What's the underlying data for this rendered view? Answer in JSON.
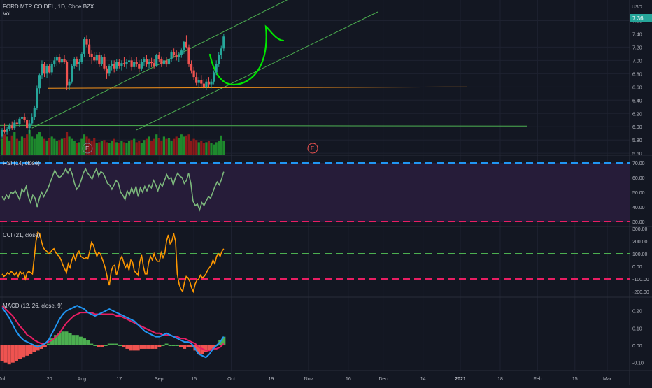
{
  "colors": {
    "bg": "#131722",
    "grid": "#1e2230",
    "axisText": "#b2b5be",
    "up": "#26a69a",
    "down": "#ef5350",
    "volUp": "#1e8a2d",
    "volDown": "#8b1a1a",
    "channel": "#4caf50",
    "support": "#f7931a",
    "rsi": "#7cb87c",
    "rsiBand": "#2a1e3c",
    "level70": "#2196f3",
    "level30": "#e91e63",
    "cci": "#ff9800",
    "cciUp": "#4caf50",
    "macd": "#2196f3",
    "signal": "#e91e63",
    "drawn": "#00e600",
    "priceTag": "#26a69a"
  },
  "header": {
    "symbol": "FORD MTR CO DEL, 1D, Cboe BZX",
    "volume_label": "Vol",
    "currency": "USD",
    "last_price": "7.36"
  },
  "x_axis": {
    "labels": [
      "Jul",
      "20",
      "Aug",
      "17",
      "Sep",
      "15",
      "Oct",
      "19",
      "Nov",
      "16",
      "Dec",
      "14",
      "2021",
      "18",
      "Feb",
      "15",
      "Mar"
    ],
    "label_days": [
      0,
      19,
      32,
      47,
      63,
      77,
      92,
      108,
      123,
      139,
      153,
      169,
      184,
      200,
      215,
      230,
      243
    ]
  },
  "price_axis": {
    "ticks": [
      "5.60",
      "5.80",
      "6.00",
      "6.20",
      "6.40",
      "6.60",
      "6.80",
      "7.00",
      "7.20",
      "7.40",
      "7.60"
    ]
  },
  "events": {
    "earnings_1": "E",
    "earnings_2": "E"
  },
  "rsi": {
    "label": "RSI (14, close)",
    "ticks": [
      "70.00",
      "60.00",
      "50.00",
      "40.00",
      "30.00"
    ],
    "values": [
      47,
      45,
      48,
      46,
      50,
      49,
      51,
      48,
      45,
      52,
      50,
      54,
      47,
      43,
      48,
      46,
      40,
      46,
      50,
      47,
      50,
      53,
      57,
      61,
      65,
      62,
      60,
      61,
      63,
      66,
      63,
      66,
      62,
      56,
      52,
      54,
      58,
      63,
      66,
      63,
      61,
      59,
      63,
      66,
      61,
      64,
      63,
      60,
      56,
      55,
      52,
      55,
      58,
      56,
      50,
      48,
      45,
      51,
      48,
      53,
      49,
      54,
      47,
      53,
      50,
      54,
      51,
      55,
      53,
      58,
      55,
      51,
      56,
      54,
      58,
      62,
      59,
      60,
      55,
      60,
      63,
      61,
      60,
      56,
      58,
      63,
      56,
      44,
      41,
      42,
      38,
      43,
      41,
      44,
      47,
      46,
      50,
      54,
      57,
      55,
      59,
      64
    ]
  },
  "cci": {
    "label": "CCI (21, close)",
    "ticks": [
      "300.00",
      "200.00",
      "100.00",
      "0.00",
      "-100.00",
      "-200.00"
    ],
    "values": [
      -60,
      -80,
      -70,
      -50,
      -60,
      -40,
      -50,
      -70,
      -50,
      -80,
      -40,
      -60,
      -50,
      -100,
      -50,
      -40,
      -50,
      -60,
      70,
      200,
      270,
      260,
      200,
      150,
      130,
      120,
      100,
      110,
      130,
      140,
      110,
      90,
      80,
      50,
      10,
      -20,
      -50,
      20,
      -10,
      50,
      90,
      50,
      100,
      120,
      80,
      70,
      60,
      70,
      60,
      120,
      190,
      170,
      120,
      80,
      110,
      100,
      60,
      20,
      -30,
      -100,
      -150,
      -40,
      0,
      10,
      -70,
      -20,
      50,
      80,
      30,
      -10,
      20,
      -30,
      50,
      30,
      -40,
      -50,
      -70,
      30,
      90,
      0,
      -60,
      -60,
      30,
      80,
      50,
      100,
      60,
      40,
      40,
      110,
      70,
      100,
      200,
      250,
      180,
      200,
      260,
      200,
      -60,
      -140,
      -180,
      -200,
      -130,
      -80,
      -90,
      -120,
      -170,
      -200,
      -140,
      -110,
      -100,
      -70,
      -90,
      -80,
      -60,
      -30,
      -10,
      10,
      50,
      20,
      80,
      100,
      80,
      120,
      140
    ]
  },
  "macd": {
    "label": "MACD (12, 26, close, 9)",
    "ticks": [
      "0.20",
      "0.10",
      "0.00",
      "-0.10"
    ]
  },
  "chart_data": {
    "type": "candlestick",
    "title": "FORD MTR CO DEL, 1D, Cboe BZX",
    "y_range": [
      5.57,
      7.7
    ],
    "x_range_days": [
      0,
      248
    ],
    "candles": [
      {
        "d": 0,
        "o": 5.85,
        "h": 5.98,
        "l": 5.82,
        "c": 5.95
      },
      {
        "d": 1,
        "o": 5.95,
        "h": 6.05,
        "l": 5.9,
        "c": 5.92
      },
      {
        "d": 2,
        "o": 5.92,
        "h": 6.0,
        "l": 5.88,
        "c": 5.97
      },
      {
        "d": 3,
        "o": 5.97,
        "h": 6.05,
        "l": 5.93,
        "c": 6.02
      },
      {
        "d": 4,
        "o": 6.02,
        "h": 6.08,
        "l": 5.95,
        "c": 5.98
      },
      {
        "d": 5,
        "o": 5.98,
        "h": 6.1,
        "l": 5.95,
        "c": 6.06
      },
      {
        "d": 6,
        "o": 6.06,
        "h": 6.12,
        "l": 6.0,
        "c": 6.04
      },
      {
        "d": 7,
        "o": 6.04,
        "h": 6.14,
        "l": 6.0,
        "c": 6.12
      },
      {
        "d": 8,
        "o": 6.12,
        "h": 6.18,
        "l": 6.08,
        "c": 6.14
      },
      {
        "d": 9,
        "o": 6.14,
        "h": 6.2,
        "l": 6.06,
        "c": 6.1
      },
      {
        "d": 10,
        "o": 6.1,
        "h": 6.15,
        "l": 5.95,
        "c": 5.98
      },
      {
        "d": 11,
        "o": 5.98,
        "h": 6.1,
        "l": 5.9,
        "c": 6.05
      },
      {
        "d": 12,
        "o": 6.05,
        "h": 6.2,
        "l": 6.02,
        "c": 6.15
      },
      {
        "d": 13,
        "o": 6.15,
        "h": 6.32,
        "l": 6.1,
        "c": 6.28
      },
      {
        "d": 14,
        "o": 6.28,
        "h": 6.62,
        "l": 6.25,
        "c": 6.58
      },
      {
        "d": 15,
        "o": 6.58,
        "h": 6.8,
        "l": 6.5,
        "c": 6.78
      },
      {
        "d": 16,
        "o": 6.78,
        "h": 7.0,
        "l": 6.72,
        "c": 6.95
      },
      {
        "d": 17,
        "o": 6.95,
        "h": 6.98,
        "l": 6.75,
        "c": 6.8
      },
      {
        "d": 18,
        "o": 6.8,
        "h": 6.95,
        "l": 6.74,
        "c": 6.92
      },
      {
        "d": 19,
        "o": 6.92,
        "h": 6.95,
        "l": 6.8,
        "c": 6.82
      },
      {
        "d": 20,
        "o": 6.82,
        "h": 6.98,
        "l": 6.78,
        "c": 6.95
      },
      {
        "d": 21,
        "o": 6.95,
        "h": 7.05,
        "l": 6.9,
        "c": 7.0
      },
      {
        "d": 22,
        "o": 7.0,
        "h": 7.08,
        "l": 6.92,
        "c": 7.05
      },
      {
        "d": 23,
        "o": 7.05,
        "h": 7.1,
        "l": 6.95,
        "c": 6.97
      },
      {
        "d": 24,
        "o": 6.97,
        "h": 7.05,
        "l": 6.9,
        "c": 7.02
      },
      {
        "d": 25,
        "o": 7.02,
        "h": 7.08,
        "l": 6.95,
        "c": 6.98
      },
      {
        "d": 26,
        "o": 6.98,
        "h": 7.0,
        "l": 6.55,
        "c": 6.62
      },
      {
        "d": 27,
        "o": 6.62,
        "h": 6.72,
        "l": 6.55,
        "c": 6.68
      },
      {
        "d": 28,
        "o": 6.68,
        "h": 6.95,
        "l": 6.65,
        "c": 6.92
      },
      {
        "d": 29,
        "o": 6.92,
        "h": 7.05,
        "l": 6.88,
        "c": 7.02
      },
      {
        "d": 30,
        "o": 7.02,
        "h": 7.06,
        "l": 6.9,
        "c": 6.95
      },
      {
        "d": 31,
        "o": 6.95,
        "h": 7.02,
        "l": 6.85,
        "c": 6.98
      },
      {
        "d": 32,
        "o": 6.98,
        "h": 7.12,
        "l": 6.95,
        "c": 7.1
      },
      {
        "d": 33,
        "o": 7.1,
        "h": 7.35,
        "l": 7.05,
        "c": 7.32
      },
      {
        "d": 34,
        "o": 7.32,
        "h": 7.38,
        "l": 7.2,
        "c": 7.24
      },
      {
        "d": 35,
        "o": 7.24,
        "h": 7.32,
        "l": 7.05,
        "c": 7.1
      },
      {
        "d": 36,
        "o": 7.1,
        "h": 7.15,
        "l": 6.95,
        "c": 7.05
      },
      {
        "d": 37,
        "o": 7.05,
        "h": 7.12,
        "l": 6.98,
        "c": 7.0
      },
      {
        "d": 38,
        "o": 7.0,
        "h": 7.12,
        "l": 6.95,
        "c": 7.08
      },
      {
        "d": 39,
        "o": 7.08,
        "h": 7.12,
        "l": 6.9,
        "c": 6.95
      },
      {
        "d": 40,
        "o": 6.95,
        "h": 7.08,
        "l": 6.92,
        "c": 7.05
      },
      {
        "d": 41,
        "o": 7.05,
        "h": 7.1,
        "l": 6.85,
        "c": 6.88
      },
      {
        "d": 42,
        "o": 6.88,
        "h": 6.92,
        "l": 6.72,
        "c": 6.8
      },
      {
        "d": 43,
        "o": 6.8,
        "h": 6.95,
        "l": 6.76,
        "c": 6.92
      },
      {
        "d": 44,
        "o": 6.92,
        "h": 7.0,
        "l": 6.85,
        "c": 6.95
      },
      {
        "d": 45,
        "o": 6.95,
        "h": 7.0,
        "l": 6.82,
        "c": 6.88
      },
      {
        "d": 46,
        "o": 6.88,
        "h": 7.02,
        "l": 6.84,
        "c": 6.98
      },
      {
        "d": 47,
        "o": 6.98,
        "h": 7.02,
        "l": 6.88,
        "c": 6.92
      },
      {
        "d": 48,
        "o": 6.92,
        "h": 7.0,
        "l": 6.85,
        "c": 6.96
      },
      {
        "d": 49,
        "o": 6.96,
        "h": 7.05,
        "l": 6.9,
        "c": 6.95
      },
      {
        "d": 50,
        "o": 6.95,
        "h": 7.02,
        "l": 6.88,
        "c": 6.98
      },
      {
        "d": 51,
        "o": 6.98,
        "h": 7.08,
        "l": 6.92,
        "c": 7.0
      },
      {
        "d": 52,
        "o": 7.0,
        "h": 7.05,
        "l": 6.85,
        "c": 6.9
      },
      {
        "d": 53,
        "o": 6.9,
        "h": 7.02,
        "l": 6.86,
        "c": 6.98
      },
      {
        "d": 54,
        "o": 6.98,
        "h": 7.05,
        "l": 6.9,
        "c": 6.95
      },
      {
        "d": 55,
        "o": 6.95,
        "h": 7.0,
        "l": 6.82,
        "c": 6.88
      },
      {
        "d": 56,
        "o": 6.88,
        "h": 7.02,
        "l": 6.84,
        "c": 6.98
      },
      {
        "d": 57,
        "o": 6.98,
        "h": 7.05,
        "l": 6.92,
        "c": 7.02
      },
      {
        "d": 58,
        "o": 7.02,
        "h": 7.08,
        "l": 6.9,
        "c": 6.94
      },
      {
        "d": 59,
        "o": 6.94,
        "h": 7.02,
        "l": 6.88,
        "c": 6.98
      },
      {
        "d": 60,
        "o": 6.98,
        "h": 7.04,
        "l": 6.9,
        "c": 6.96
      },
      {
        "d": 61,
        "o": 6.96,
        "h": 7.02,
        "l": 6.88,
        "c": 6.92
      },
      {
        "d": 62,
        "o": 6.92,
        "h": 7.1,
        "l": 6.9,
        "c": 7.08
      },
      {
        "d": 63,
        "o": 7.08,
        "h": 7.12,
        "l": 6.98,
        "c": 7.02
      },
      {
        "d": 64,
        "o": 7.02,
        "h": 7.06,
        "l": 6.9,
        "c": 6.95
      },
      {
        "d": 65,
        "o": 6.95,
        "h": 7.05,
        "l": 6.92,
        "c": 7.0
      },
      {
        "d": 66,
        "o": 7.0,
        "h": 7.05,
        "l": 6.9,
        "c": 6.94
      },
      {
        "d": 67,
        "o": 6.94,
        "h": 7.05,
        "l": 6.9,
        "c": 7.02
      },
      {
        "d": 68,
        "o": 7.02,
        "h": 7.15,
        "l": 6.98,
        "c": 7.12
      },
      {
        "d": 69,
        "o": 7.12,
        "h": 7.18,
        "l": 7.04,
        "c": 7.08
      },
      {
        "d": 70,
        "o": 7.08,
        "h": 7.15,
        "l": 7.0,
        "c": 7.05
      },
      {
        "d": 71,
        "o": 7.05,
        "h": 7.12,
        "l": 6.98,
        "c": 7.08
      },
      {
        "d": 72,
        "o": 7.08,
        "h": 7.18,
        "l": 7.04,
        "c": 7.15
      },
      {
        "d": 73,
        "o": 7.15,
        "h": 7.3,
        "l": 7.1,
        "c": 7.28
      },
      {
        "d": 74,
        "o": 7.28,
        "h": 7.38,
        "l": 7.18,
        "c": 7.2
      },
      {
        "d": 75,
        "o": 7.2,
        "h": 7.24,
        "l": 6.9,
        "c": 6.95
      },
      {
        "d": 76,
        "o": 6.95,
        "h": 7.0,
        "l": 6.8,
        "c": 6.85
      },
      {
        "d": 77,
        "o": 6.85,
        "h": 6.9,
        "l": 6.7,
        "c": 6.75
      },
      {
        "d": 78,
        "o": 6.75,
        "h": 6.82,
        "l": 6.62,
        "c": 6.66
      },
      {
        "d": 79,
        "o": 6.66,
        "h": 6.75,
        "l": 6.58,
        "c": 6.7
      },
      {
        "d": 80,
        "o": 6.7,
        "h": 6.78,
        "l": 6.6,
        "c": 6.65
      },
      {
        "d": 81,
        "o": 6.65,
        "h": 6.72,
        "l": 6.56,
        "c": 6.6
      },
      {
        "d": 82,
        "o": 6.6,
        "h": 6.72,
        "l": 6.55,
        "c": 6.68
      },
      {
        "d": 83,
        "o": 6.68,
        "h": 6.75,
        "l": 6.6,
        "c": 6.64
      },
      {
        "d": 84,
        "o": 6.64,
        "h": 6.72,
        "l": 6.58,
        "c": 6.68
      },
      {
        "d": 85,
        "o": 6.68,
        "h": 6.85,
        "l": 6.64,
        "c": 6.82
      },
      {
        "d": 86,
        "o": 6.82,
        "h": 7.0,
        "l": 6.78,
        "c": 6.95
      },
      {
        "d": 87,
        "o": 6.95,
        "h": 7.12,
        "l": 6.9,
        "c": 7.08
      },
      {
        "d": 88,
        "o": 7.08,
        "h": 7.22,
        "l": 7.02,
        "c": 7.18
      },
      {
        "d": 89,
        "o": 7.18,
        "h": 7.4,
        "l": 7.14,
        "c": 7.36
      }
    ],
    "volume_relative": [
      0.7,
      0.9,
      0.8,
      0.6,
      0.85,
      1.0,
      0.7,
      0.6,
      0.8,
      0.75,
      0.9,
      1.1,
      0.8,
      0.7,
      0.9,
      1.0,
      0.8,
      0.7,
      0.6,
      0.75,
      0.8,
      0.7,
      0.6,
      0.65,
      0.7,
      0.75,
      1.0,
      0.8,
      0.7,
      0.6,
      0.5,
      0.55,
      0.7,
      0.9,
      0.8,
      0.7,
      0.6,
      0.75,
      0.5,
      0.55,
      0.6,
      0.65,
      0.55,
      0.5,
      0.6,
      0.7,
      0.55,
      0.5,
      0.6,
      0.55,
      0.5,
      0.6,
      0.65,
      0.7,
      0.55,
      0.6,
      0.5,
      0.65,
      0.7,
      0.8,
      0.6,
      0.7,
      0.9,
      0.75,
      0.6,
      0.8,
      0.7,
      0.75,
      0.6,
      0.7,
      0.8,
      0.75,
      0.9,
      0.8,
      0.85,
      0.9,
      0.6,
      0.7,
      0.65,
      0.55,
      0.6,
      0.5,
      0.55,
      0.6,
      0.5,
      0.45,
      0.55,
      0.6,
      0.85,
      0.6
    ],
    "support_line": 6.58,
    "lower_horizontal_line": 6.02,
    "macd_values": [
      0.22,
      0.19,
      0.16,
      0.12,
      0.08,
      0.05,
      0.03,
      0.02,
      0.01,
      0.0,
      -0.01,
      0.0,
      0.01,
      0.03,
      0.07,
      0.11,
      0.15,
      0.18,
      0.2,
      0.21,
      0.22,
      0.23,
      0.22,
      0.21,
      0.19,
      0.18,
      0.17,
      0.18,
      0.19,
      0.2,
      0.21,
      0.2,
      0.19,
      0.18,
      0.17,
      0.16,
      0.15,
      0.14,
      0.12,
      0.1,
      0.08,
      0.07,
      0.06,
      0.05,
      0.05,
      0.06,
      0.07,
      0.06,
      0.05,
      0.04,
      0.03,
      0.02,
      0.02,
      0.01,
      -0.02,
      -0.05,
      -0.06,
      -0.07,
      -0.05,
      -0.02,
      0.0,
      0.02,
      0.05
    ],
    "signal_values": [
      0.23,
      0.21,
      0.19,
      0.17,
      0.14,
      0.11,
      0.09,
      0.06,
      0.05,
      0.03,
      0.02,
      0.01,
      0.01,
      0.02,
      0.03,
      0.05,
      0.07,
      0.1,
      0.13,
      0.15,
      0.17,
      0.18,
      0.19,
      0.19,
      0.19,
      0.19,
      0.18,
      0.18,
      0.18,
      0.18,
      0.18,
      0.18,
      0.17,
      0.17,
      0.16,
      0.15,
      0.14,
      0.13,
      0.12,
      0.11,
      0.1,
      0.09,
      0.08,
      0.07,
      0.07,
      0.06,
      0.06,
      0.06,
      0.05,
      0.05,
      0.04,
      0.04,
      0.03,
      0.02,
      0.01,
      -0.01,
      -0.02,
      -0.03,
      -0.03,
      -0.02,
      -0.02,
      -0.01,
      0.01
    ],
    "histogram_values": [
      -0.09,
      -0.1,
      -0.11,
      -0.1,
      -0.09,
      -0.08,
      -0.07,
      -0.06,
      -0.05,
      -0.04,
      -0.03,
      -0.02,
      -0.01,
      0.01,
      0.04,
      0.06,
      0.07,
      0.08,
      0.08,
      0.07,
      0.06,
      0.06,
      0.05,
      0.04,
      0.03,
      0.01,
      0.0,
      -0.01,
      -0.01,
      0.0,
      0.01,
      0.01,
      0.01,
      0.0,
      -0.01,
      -0.02,
      -0.03,
      -0.03,
      -0.03,
      -0.02,
      -0.02,
      -0.02,
      -0.02,
      -0.02,
      -0.01,
      0.0,
      0.01,
      0.0,
      0.0,
      0.0,
      -0.01,
      -0.02,
      -0.01,
      -0.01,
      -0.03,
      -0.05,
      -0.05,
      -0.04,
      -0.03,
      -0.02,
      0.0,
      0.03,
      0.05
    ]
  }
}
